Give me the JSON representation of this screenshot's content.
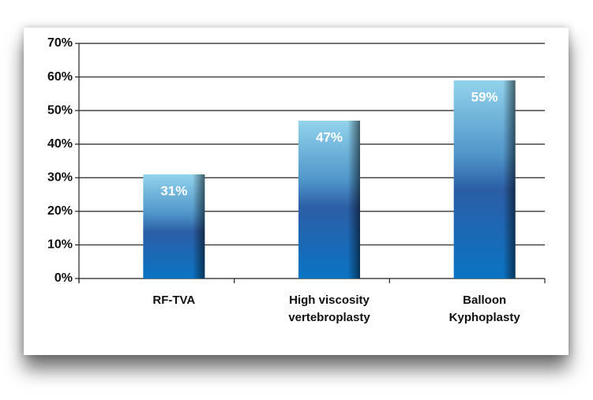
{
  "chart_data": {
    "type": "bar",
    "categories": [
      "RF-TVA",
      "High viscosity vertebroplasty",
      "Balloon Kyphoplasty"
    ],
    "values": [
      31,
      47,
      59
    ],
    "value_labels": [
      "31%",
      "47%",
      "59%"
    ],
    "ylim": [
      0,
      70
    ],
    "yticks": [
      {
        "value": 0,
        "label": "0%"
      },
      {
        "value": 10,
        "label": "10%"
      },
      {
        "value": 20,
        "label": "20%"
      },
      {
        "value": 30,
        "label": "30%"
      },
      {
        "value": 40,
        "label": "40%"
      },
      {
        "value": 50,
        "label": "50%"
      },
      {
        "value": 60,
        "label": "60%"
      },
      {
        "value": 70,
        "label": "70%"
      }
    ],
    "grid": true
  }
}
